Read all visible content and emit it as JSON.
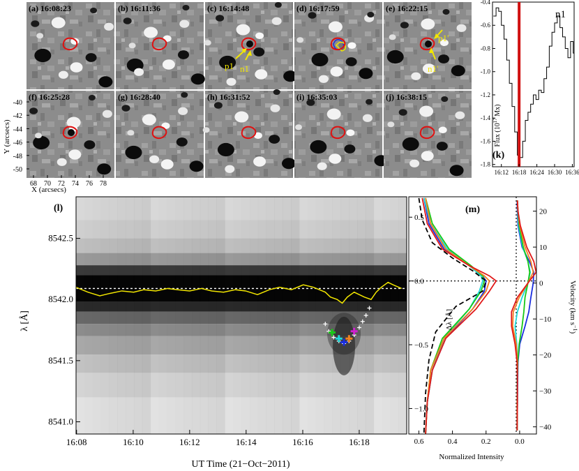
{
  "figure": {
    "panel_x_label": "X (arcsecs)",
    "panel_y_label": "Y (arcsecs)",
    "x_ticks": [
      "68",
      "70",
      "72",
      "74",
      "76",
      "78"
    ],
    "y_ticks": [
      "-40",
      "-42",
      "-44",
      "-46",
      "-48",
      "-50"
    ],
    "panels": [
      {
        "label": "(a) 16:08:23"
      },
      {
        "label": "(b) 16:11:36"
      },
      {
        "label": "(c) 16:14:48"
      },
      {
        "label": "(d) 16:17:59"
      },
      {
        "label": "(e) 16:22:15"
      },
      {
        "label": "(f) 16:25:28"
      },
      {
        "label": "(g) 16:28:40"
      },
      {
        "label": "(h) 16:31:52"
      },
      {
        "label": "(i) 16:35:03"
      },
      {
        "label": "(j) 16:38:15"
      }
    ],
    "annotations": {
      "p1": "p1",
      "n1": "n1",
      "p1p": "p1'",
      "n1p": "n1'"
    },
    "colors": {
      "contour": "#e01010",
      "arrow": "#f2e600",
      "fit": "#f2e600",
      "marker": "#d01010"
    }
  },
  "chart_data": [
    {
      "type": "line",
      "panel": "k",
      "panel_label": "(k)",
      "title": "n1",
      "ylabel": "Flux (10^17 Mx)",
      "ylabel_base": "Flux (10",
      "ylabel_exp": "17",
      "ylabel_unit": " Mx)",
      "xlim": [
        16.15,
        16.61
      ],
      "ylim": [
        -1.82,
        -0.4
      ],
      "x_tick_values": [
        16.2,
        16.3,
        16.4,
        16.5,
        16.6
      ],
      "x_tick_labels": [
        "16:12",
        "16:18",
        "16:24",
        "16:30",
        "16:36"
      ],
      "y_tick_values": [
        -0.4,
        -0.6,
        -0.8,
        -1.0,
        -1.2,
        -1.4,
        -1.6,
        -1.8
      ],
      "y_tick_labels": [
        "-0.4",
        "-0.6",
        "-0.8",
        "-1.0",
        "-1.2",
        "-1.4",
        "-1.6",
        "-1.8"
      ],
      "marker_time": 16.3,
      "x": [
        16.155,
        16.17,
        16.185,
        16.2,
        16.215,
        16.23,
        16.245,
        16.26,
        16.275,
        16.29,
        16.305,
        16.32,
        16.335,
        16.35,
        16.365,
        16.38,
        16.395,
        16.41,
        16.425,
        16.44,
        16.455,
        16.47,
        16.485,
        16.5,
        16.515,
        16.53,
        16.545,
        16.56,
        16.575,
        16.59,
        16.605
      ],
      "y": [
        -0.52,
        -0.45,
        -0.48,
        -0.6,
        -0.72,
        -0.9,
        -1.1,
        -1.3,
        -1.52,
        -1.72,
        -1.74,
        -1.6,
        -1.42,
        -1.35,
        -1.28,
        -1.2,
        -1.24,
        -1.16,
        -1.18,
        -1.06,
        -0.96,
        -0.78,
        -0.66,
        -0.58,
        -0.52,
        -0.62,
        -0.7,
        -0.8,
        -0.88,
        -0.74,
        -0.84
      ]
    },
    {
      "type": "heatmap",
      "panel": "l",
      "panel_label": "(l)",
      "xlabel": "UT Time (21−Oct−2011)",
      "ylabel": "λ [Å]",
      "xlim": [
        16.133,
        16.328
      ],
      "ylim": [
        8540.9,
        8542.84
      ],
      "x_tick_values": [
        16.1333,
        16.1667,
        16.2,
        16.2333,
        16.2667,
        16.3
      ],
      "x_tick_labels": [
        "16:08",
        "16:10",
        "16:12",
        "16:14",
        "16:16",
        "16:18"
      ],
      "y_tick_values": [
        8541.0,
        8541.5,
        8542.0,
        8542.5
      ],
      "y_tick_labels": [
        "8541.0",
        "8541.5",
        "8542.0",
        "8542.5"
      ],
      "reference_wavelength": 8542.09,
      "line_center_time": [
        16.133,
        16.14,
        16.147,
        16.153,
        16.16,
        16.167,
        16.173,
        16.18,
        16.187,
        16.193,
        16.2,
        16.207,
        16.213,
        16.22,
        16.227,
        16.233,
        16.24,
        16.247,
        16.253,
        16.26,
        16.267,
        16.273,
        16.28,
        16.283,
        16.287,
        16.29,
        16.293,
        16.297,
        16.3,
        16.303,
        16.307,
        16.31,
        16.313,
        16.317,
        16.32,
        16.325
      ],
      "line_center_wavelength": [
        8542.1,
        8542.06,
        8542.03,
        8542.05,
        8542.07,
        8542.06,
        8542.08,
        8542.07,
        8542.09,
        8542.08,
        8542.07,
        8542.09,
        8542.07,
        8542.06,
        8542.08,
        8542.07,
        8542.04,
        8542.08,
        8542.1,
        8542.08,
        8542.12,
        8542.1,
        8542.06,
        8542.02,
        8542.0,
        8541.97,
        8542.02,
        8542.06,
        8542.04,
        8542.02,
        8542.0,
        8542.06,
        8542.1,
        8542.14,
        8542.12,
        8542.09
      ],
      "crosses_time": [
        16.28,
        16.282,
        16.285,
        16.288,
        16.291,
        16.294,
        16.297,
        16.3,
        16.302,
        16.304,
        16.306
      ],
      "crosses_wavelength": [
        8541.8,
        8541.74,
        8541.69,
        8541.66,
        8541.64,
        8541.66,
        8541.71,
        8541.77,
        8541.82,
        8541.87,
        8541.93
      ],
      "colored_crosses": [
        {
          "time": 16.284,
          "wavelength": 8541.73,
          "color": "#18c818"
        },
        {
          "time": 16.288,
          "wavelength": 8541.68,
          "color": "#20d8d8"
        },
        {
          "time": 16.291,
          "wavelength": 8541.65,
          "color": "#1a2ee0"
        },
        {
          "time": 16.294,
          "wavelength": 8541.68,
          "color": "#f08020"
        },
        {
          "time": 16.297,
          "wavelength": 8541.74,
          "color": "#d020d0"
        }
      ]
    },
    {
      "type": "line",
      "panel": "m",
      "panel_label": "(m)",
      "xlabel": "Normalized Intensity",
      "ylabel_left": "Δλ [Å]",
      "ylabel_right_base": "Velocity (km s",
      "ylabel_right_exp": "−1",
      "ylabel_right_unit": ")",
      "x_tick_labels": [
        "0.6",
        "0.4",
        "0.2",
        "0.0"
      ],
      "y_left_ticks": [
        "0.5",
        "0.0",
        "−0.5",
        "−1.0"
      ],
      "y_right_ticks": [
        "20",
        "10",
        "0",
        "−10",
        "−20",
        "−30",
        "−40"
      ],
      "ylim": [
        -1.2,
        0.66
      ],
      "series": [
        {
          "name": "blue",
          "color": "#1a2ee0",
          "intensity": [
            0.57,
            0.54,
            0.45,
            0.3,
            0.22,
            0.2,
            0.21,
            0.28,
            0.44,
            0.52,
            0.55,
            0.56
          ],
          "dl": [
            0.65,
            0.45,
            0.25,
            0.12,
            0.04,
            0.0,
            -0.08,
            -0.22,
            -0.45,
            -0.7,
            -0.95,
            -1.2
          ],
          "velocity": [
            0.003,
            0.004,
            0.006,
            0.02,
            0.045,
            0.06,
            0.058,
            0.05,
            0.043,
            0.03,
            0.012,
            0.006,
            0.005,
            0.004,
            0.003
          ],
          "v": [
            23,
            20,
            16,
            10,
            6,
            3,
            0,
            -4,
            -8,
            -12,
            -17,
            -22,
            -27,
            -34,
            -41
          ]
        },
        {
          "name": "cyan",
          "color": "#20d8d8",
          "intensity": [
            0.57,
            0.53,
            0.43,
            0.3,
            0.23,
            0.22,
            0.24,
            0.3,
            0.45,
            0.52,
            0.55,
            0.56
          ],
          "dl": [
            0.65,
            0.45,
            0.25,
            0.12,
            0.04,
            0.0,
            -0.08,
            -0.22,
            -0.45,
            -0.7,
            -0.95,
            -1.2
          ],
          "velocity": [
            0.004,
            0.005,
            0.008,
            0.022,
            0.04,
            0.048,
            0.04,
            0.02,
            0.004,
            -0.004,
            0.002,
            0.004,
            0.003,
            0.003,
            0.003
          ],
          "v": [
            23,
            20,
            16,
            10,
            6,
            3,
            0,
            -4,
            -8,
            -12,
            -17,
            -22,
            -27,
            -34,
            -41
          ]
        },
        {
          "name": "green",
          "color": "#18c818",
          "intensity": [
            0.56,
            0.52,
            0.42,
            0.29,
            0.22,
            0.21,
            0.23,
            0.3,
            0.46,
            0.53,
            0.55,
            0.56
          ],
          "dl": [
            0.65,
            0.45,
            0.25,
            0.12,
            0.04,
            0.0,
            -0.08,
            -0.22,
            -0.45,
            -0.7,
            -0.95,
            -1.2
          ],
          "velocity": [
            0.004,
            0.006,
            0.01,
            0.024,
            0.04,
            0.046,
            0.04,
            0.03,
            0.026,
            0.02,
            0.01,
            0.005,
            0.004,
            0.004,
            0.003
          ],
          "v": [
            23,
            20,
            16,
            10,
            6,
            3,
            0,
            -4,
            -8,
            -12,
            -17,
            -22,
            -27,
            -34,
            -41
          ]
        },
        {
          "name": "orange",
          "color": "#f08020",
          "intensity": [
            0.56,
            0.53,
            0.44,
            0.3,
            0.21,
            0.18,
            0.2,
            0.28,
            0.45,
            0.53,
            0.55,
            0.56
          ],
          "dl": [
            0.65,
            0.45,
            0.25,
            0.12,
            0.04,
            0.0,
            -0.08,
            -0.22,
            -0.45,
            -0.7,
            -0.95,
            -1.2
          ],
          "velocity": [
            0.004,
            0.006,
            0.012,
            0.03,
            0.05,
            0.058,
            0.04,
            0.01,
            -0.01,
            -0.012,
            0.0,
            0.004,
            0.004,
            0.003,
            0.003
          ],
          "v": [
            23,
            20,
            16,
            10,
            6,
            3,
            0,
            -4,
            -8,
            -12,
            -17,
            -22,
            -27,
            -34,
            -41
          ]
        },
        {
          "name": "red",
          "color": "#e01818",
          "intensity": [
            0.58,
            0.55,
            0.46,
            0.3,
            0.18,
            0.14,
            0.18,
            0.26,
            0.44,
            0.52,
            0.55,
            0.56
          ],
          "dl": [
            0.65,
            0.45,
            0.25,
            0.12,
            0.04,
            0.0,
            -0.08,
            -0.22,
            -0.45,
            -0.7,
            -0.95,
            -1.2
          ],
          "velocity": [
            0.004,
            0.006,
            0.014,
            0.036,
            0.06,
            0.068,
            0.04,
            0.004,
            -0.016,
            -0.016,
            -0.004,
            0.003,
            0.004,
            0.004,
            0.003
          ],
          "v": [
            23,
            20,
            16,
            10,
            6,
            3,
            0,
            -4,
            -8,
            -12,
            -17,
            -22,
            -27,
            -34,
            -41
          ]
        },
        {
          "name": "reference",
          "color": "#000000",
          "dashed": true,
          "intensity": [
            0.6,
            0.58,
            0.52,
            0.4,
            0.28,
            0.2,
            0.22,
            0.38,
            0.5,
            0.54,
            0.56,
            0.57
          ],
          "dl": [
            0.65,
            0.48,
            0.3,
            0.18,
            0.08,
            0.0,
            -0.08,
            -0.2,
            -0.4,
            -0.62,
            -0.88,
            -1.2
          ]
        }
      ]
    }
  ]
}
